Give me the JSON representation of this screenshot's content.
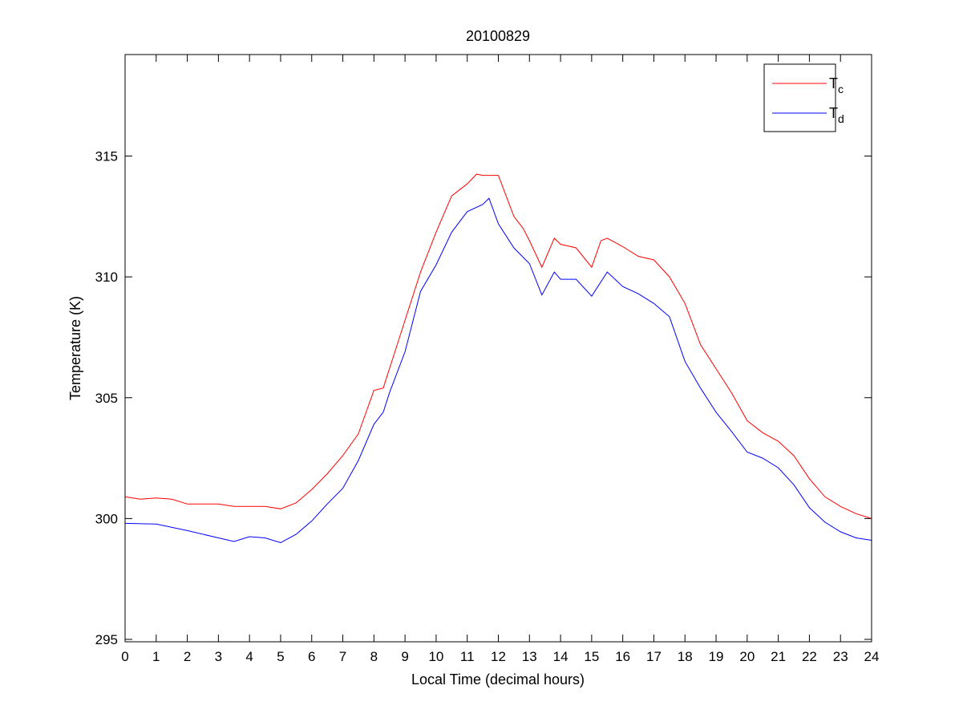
{
  "chart_data": {
    "type": "line",
    "title": "20100829",
    "xlabel": "Local Time (decimal hours)",
    "ylabel": "Temperature (K)",
    "xlim": [
      0,
      24
    ],
    "ylim": [
      294.9,
      319.2
    ],
    "xticks": [
      "0",
      "1",
      "2",
      "3",
      "4",
      "5",
      "6",
      "7",
      "8",
      "9",
      "10",
      "11",
      "12",
      "13",
      "14",
      "15",
      "16",
      "17",
      "18",
      "19",
      "20",
      "21",
      "22",
      "23",
      "24"
    ],
    "yticks": [
      "295",
      "300",
      "305",
      "310",
      "315"
    ],
    "grid": false,
    "legend_position": "top-right",
    "series": [
      {
        "name": "T",
        "subscript": "c",
        "color": "#ff0000",
        "x": [
          0,
          0.5,
          1,
          1.5,
          2,
          2.5,
          3,
          3.5,
          4,
          4.5,
          5,
          5.5,
          6,
          6.5,
          7,
          7.5,
          8,
          8.3,
          8.5,
          9,
          9.5,
          10,
          10.5,
          11,
          11.3,
          11.5,
          12,
          12.5,
          12.8,
          13,
          13.4,
          13.8,
          14,
          14.5,
          15,
          15.3,
          15.5,
          16,
          16.5,
          17,
          17.5,
          18,
          18.5,
          19,
          19.5,
          20,
          20.5,
          21,
          21.5,
          22,
          22.5,
          23,
          23.5,
          24
        ],
        "y": [
          300.9,
          300.8,
          300.85,
          300.8,
          300.6,
          300.6,
          300.6,
          300.5,
          300.5,
          300.5,
          300.4,
          300.65,
          301.2,
          301.85,
          302.6,
          303.5,
          305.3,
          305.4,
          306.2,
          308.2,
          310.2,
          311.85,
          313.35,
          313.85,
          314.25,
          314.2,
          314.2,
          312.5,
          312.0,
          311.5,
          310.4,
          311.6,
          311.35,
          311.2,
          310.4,
          311.5,
          311.6,
          311.25,
          310.85,
          310.7,
          310.0,
          308.9,
          307.2,
          306.2,
          305.2,
          304.05,
          303.55,
          303.2,
          302.6,
          301.65,
          300.9,
          300.5,
          300.2,
          300.0
        ]
      },
      {
        "name": "T",
        "subscript": "d",
        "color": "#0000ff",
        "x": [
          0,
          1,
          2,
          3,
          3.5,
          4,
          4.5,
          5,
          5.5,
          6,
          6.5,
          7,
          7.5,
          8,
          8.3,
          8.5,
          9,
          9.5,
          10,
          10.5,
          11,
          11.5,
          11.7,
          12,
          12.5,
          13,
          13.4,
          13.8,
          14,
          14.5,
          15,
          15.5,
          16,
          16.5,
          17,
          17.5,
          18,
          18.5,
          19,
          19.5,
          20,
          20.5,
          21,
          21.5,
          22,
          22.5,
          23,
          23.5,
          24
        ],
        "y": [
          299.8,
          299.77,
          299.5,
          299.2,
          299.05,
          299.25,
          299.2,
          299.0,
          299.35,
          299.9,
          300.6,
          301.25,
          302.4,
          303.9,
          304.4,
          305.2,
          306.9,
          309.4,
          310.5,
          311.85,
          312.7,
          313.0,
          313.25,
          312.2,
          311.2,
          310.55,
          309.25,
          310.2,
          309.9,
          309.9,
          309.2,
          310.2,
          309.6,
          309.3,
          308.9,
          308.35,
          306.5,
          305.4,
          304.4,
          303.6,
          302.75,
          302.5,
          302.1,
          301.4,
          300.45,
          299.85,
          299.45,
          299.2,
          299.1
        ]
      }
    ]
  }
}
